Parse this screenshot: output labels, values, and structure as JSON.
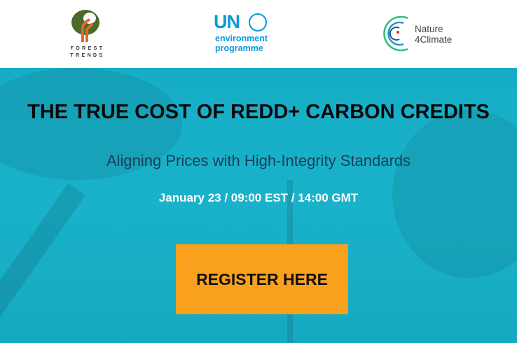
{
  "header": {
    "logos": {
      "forest_trends": {
        "line1": "FOREST",
        "line2": "TRENDS"
      },
      "unep": {
        "un": "UN",
        "line1": "environment",
        "line2": "programme"
      },
      "nature4climate": {
        "line1": "Nature",
        "line2": "4Climate"
      }
    }
  },
  "banner": {
    "title": "THE TRUE COST OF REDD+ CARBON CREDITS",
    "subtitle": "Aligning Prices with High-Integrity Standards",
    "date": "January 23 / 09:00 EST / 14:00 GMT",
    "register_label": "REGISTER HERE"
  },
  "colors": {
    "banner": "#19b2ca",
    "button": "#f9a11d",
    "subtitle": "#17405a",
    "brand_blue": "#0a9ad8"
  }
}
